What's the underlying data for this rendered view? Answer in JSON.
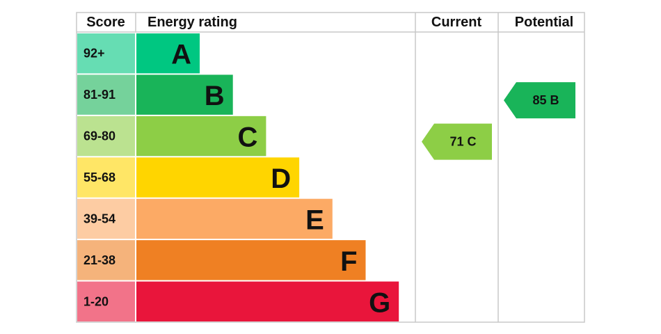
{
  "header": {
    "score": "Score",
    "rating": "Energy rating",
    "current": "Current",
    "potential": "Potential"
  },
  "bands": [
    {
      "score": "92+",
      "letter": "A",
      "color": "#00c781"
    },
    {
      "score": "81-91",
      "letter": "B",
      "color": "#19b459"
    },
    {
      "score": "69-80",
      "letter": "C",
      "color": "#8dce46"
    },
    {
      "score": "55-68",
      "letter": "D",
      "color": "#ffd500"
    },
    {
      "score": "39-54",
      "letter": "E",
      "color": "#fcaa65"
    },
    {
      "score": "21-38",
      "letter": "F",
      "color": "#ef8023"
    },
    {
      "score": "1-20",
      "letter": "G",
      "color": "#e9153b"
    }
  ],
  "current": {
    "label": "71 C"
  },
  "potential": {
    "label": "85 B"
  }
}
